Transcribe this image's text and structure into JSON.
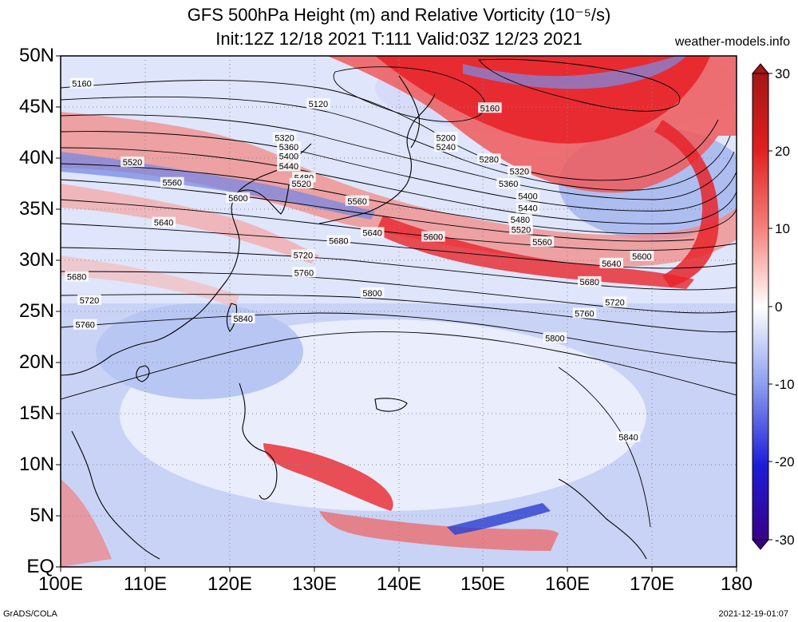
{
  "header": {
    "title_line1": "GFS 500hPa Height (m) and Relative Vorticity (10⁻⁵/s)",
    "title_line2": "Init:12Z 12/18 2021 T:111 Valid:03Z 12/23 2021",
    "site": "weather-models.info"
  },
  "footer": {
    "left": "GrADS/COLA",
    "right": "2021-12-19-01:07"
  },
  "map": {
    "lat_labels": [
      "50N",
      "45N",
      "40N",
      "35N",
      "30N",
      "25N",
      "20N",
      "15N",
      "10N",
      "5N",
      "EQ"
    ],
    "lon_labels": [
      "100E",
      "110E",
      "120E",
      "130E",
      "140E",
      "150E",
      "160E",
      "170E",
      "180"
    ],
    "lat_range": [
      0,
      50
    ],
    "lon_range": [
      100,
      180
    ],
    "gridlines": "dotted",
    "contour_labels": [
      {
        "text": "5160",
        "lon": 102.5,
        "lat": 47.3
      },
      {
        "text": "5120",
        "lon": 130.5,
        "lat": 45.3
      },
      {
        "text": "5160",
        "lon": 150.8,
        "lat": 44.9
      },
      {
        "text": "5200",
        "lon": 145.6,
        "lat": 42.0
      },
      {
        "text": "5240",
        "lon": 145.6,
        "lat": 41.1
      },
      {
        "text": "5280",
        "lon": 150.7,
        "lat": 39.9
      },
      {
        "text": "5320",
        "lon": 154.3,
        "lat": 38.7
      },
      {
        "text": "5360",
        "lon": 153.0,
        "lat": 37.5
      },
      {
        "text": "5400",
        "lon": 155.3,
        "lat": 36.3
      },
      {
        "text": "5440",
        "lon": 155.3,
        "lat": 35.1
      },
      {
        "text": "5480",
        "lon": 154.4,
        "lat": 34.0
      },
      {
        "text": "5520",
        "lon": 154.5,
        "lat": 33.0
      },
      {
        "text": "5560",
        "lon": 157.0,
        "lat": 31.8
      },
      {
        "text": "5600",
        "lon": 168.8,
        "lat": 30.4
      },
      {
        "text": "5640",
        "lon": 165.2,
        "lat": 29.7
      },
      {
        "text": "5680",
        "lon": 162.6,
        "lat": 27.9
      },
      {
        "text": "5720",
        "lon": 165.6,
        "lat": 25.9
      },
      {
        "text": "5760",
        "lon": 162.0,
        "lat": 24.8
      },
      {
        "text": "5800",
        "lon": 158.5,
        "lat": 22.4
      },
      {
        "text": "5840",
        "lon": 167.2,
        "lat": 12.7
      },
      {
        "text": "5320",
        "lon": 126.5,
        "lat": 42.0
      },
      {
        "text": "5360",
        "lon": 127.0,
        "lat": 41.1
      },
      {
        "text": "5400",
        "lon": 127.0,
        "lat": 40.2
      },
      {
        "text": "5440",
        "lon": 127.0,
        "lat": 39.2
      },
      {
        "text": "5480",
        "lon": 128.8,
        "lat": 38.1
      },
      {
        "text": "5520",
        "lon": 128.5,
        "lat": 37.5
      },
      {
        "text": "5560",
        "lon": 135.1,
        "lat": 35.8
      },
      {
        "text": "5600",
        "lon": 144.1,
        "lat": 32.3
      },
      {
        "text": "5640",
        "lon": 136.9,
        "lat": 32.7
      },
      {
        "text": "5680",
        "lon": 132.9,
        "lat": 31.9
      },
      {
        "text": "5720",
        "lon": 128.7,
        "lat": 30.5
      },
      {
        "text": "5760",
        "lon": 128.8,
        "lat": 28.8
      },
      {
        "text": "5800",
        "lon": 136.9,
        "lat": 26.8
      },
      {
        "text": "5840",
        "lon": 121.6,
        "lat": 24.3
      },
      {
        "text": "5520",
        "lon": 108.5,
        "lat": 39.6
      },
      {
        "text": "5560",
        "lon": 113.2,
        "lat": 37.6
      },
      {
        "text": "5600",
        "lon": 121.0,
        "lat": 36.1
      },
      {
        "text": "5640",
        "lon": 112.2,
        "lat": 33.7
      },
      {
        "text": "5680",
        "lon": 101.9,
        "lat": 28.4
      },
      {
        "text": "5720",
        "lon": 103.4,
        "lat": 26.1
      },
      {
        "text": "5760",
        "lon": 102.9,
        "lat": 23.7
      }
    ],
    "colors": {
      "positive_vorticity": "#e8242a",
      "negative_vorticity": "#3a4fd8",
      "neutral": "#ffffff",
      "contour": "#000000"
    }
  },
  "colorbar": {
    "labels": [
      "30",
      "20",
      "10",
      "0",
      "-10",
      "-20",
      "-30"
    ],
    "values": [
      30,
      20,
      10,
      0,
      -10,
      -20,
      -30
    ],
    "colors_top_to_bottom": [
      "#b01818",
      "#e82020",
      "#f2706a",
      "#ffffff",
      "#8898ee",
      "#2020d8",
      "#3a0090"
    ]
  }
}
